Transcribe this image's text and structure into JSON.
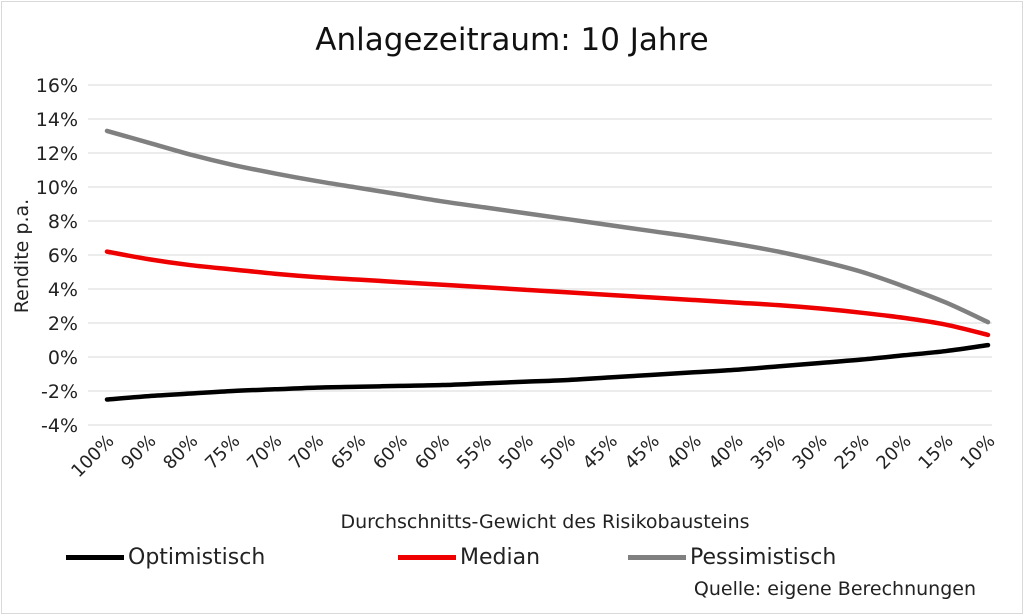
{
  "chart_data": {
    "type": "line",
    "title": "Anlagezeitraum: 10 Jahre",
    "xlabel": "Durchschnitts-Gewicht des Risikobausteins",
    "ylabel": "Rendite p.a.",
    "ylim": [
      -4,
      16
    ],
    "yticks": [
      -4,
      -2,
      0,
      2,
      4,
      6,
      8,
      10,
      12,
      14,
      16
    ],
    "ytick_labels": [
      "-4%",
      "-2%",
      "0%",
      "2%",
      "4%",
      "6%",
      "8%",
      "10%",
      "12%",
      "14%",
      "16%"
    ],
    "grid": true,
    "legend_position": "bottom",
    "categories": [
      "100%",
      "90%",
      "80%",
      "75%",
      "70%",
      "70%",
      "65%",
      "60%",
      "60%",
      "55%",
      "50%",
      "50%",
      "45%",
      "45%",
      "40%",
      "40%",
      "35%",
      "30%",
      "25%",
      "20%",
      "15%",
      "10%"
    ],
    "series": [
      {
        "name": "Optimistisch",
        "color": "#000000",
        "values": [
          -2.5,
          -2.3,
          -2.15,
          -2.0,
          -1.9,
          -1.8,
          -1.75,
          -1.7,
          -1.65,
          -1.55,
          -1.45,
          -1.35,
          -1.2,
          -1.05,
          -0.9,
          -0.75,
          -0.55,
          -0.35,
          -0.15,
          0.1,
          0.35,
          0.7
        ]
      },
      {
        "name": "Median",
        "color": "#ee0000",
        "values": [
          6.2,
          5.75,
          5.4,
          5.15,
          4.9,
          4.7,
          4.55,
          4.4,
          4.25,
          4.1,
          3.95,
          3.8,
          3.65,
          3.5,
          3.35,
          3.2,
          3.05,
          2.85,
          2.6,
          2.3,
          1.9,
          1.3
        ]
      },
      {
        "name": "Pessimistisch",
        "color": "#808080",
        "values": [
          13.3,
          12.6,
          11.9,
          11.3,
          10.8,
          10.35,
          9.95,
          9.55,
          9.15,
          8.8,
          8.45,
          8.1,
          7.75,
          7.4,
          7.05,
          6.65,
          6.2,
          5.65,
          5.0,
          4.15,
          3.2,
          2.05
        ]
      }
    ],
    "source": "Quelle: eigene Berechnungen"
  }
}
